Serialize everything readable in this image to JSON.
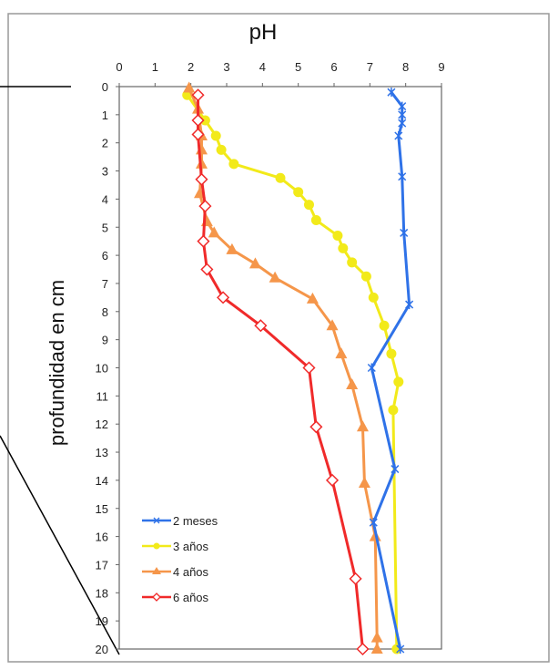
{
  "chart_data": {
    "type": "line",
    "title": "pH",
    "xlabel": "",
    "ylabel": "profundidad en cm",
    "xlim": [
      0,
      9
    ],
    "ylim": [
      0,
      20
    ],
    "y_inverted": true,
    "x_axis_position": "top",
    "grid": false,
    "legend_position": "bottom-left",
    "x_ticks": [
      "0",
      "1",
      "2",
      "3",
      "4",
      "5",
      "6",
      "7",
      "8",
      "9"
    ],
    "y_ticks": [
      "0",
      "1",
      "2",
      "3",
      "4",
      "5",
      "6",
      "7",
      "8",
      "9",
      "10",
      "11",
      "12",
      "13",
      "14",
      "15",
      "16",
      "17",
      "18",
      "19",
      "20"
    ],
    "series": [
      {
        "name": "2 meses",
        "color": "#2f72e8",
        "marker": "x",
        "points": [
          [
            7.6,
            0.2
          ],
          [
            7.9,
            0.7
          ],
          [
            7.9,
            1.0
          ],
          [
            7.9,
            1.3
          ],
          [
            7.8,
            1.75
          ],
          [
            7.9,
            3.2
          ],
          [
            7.95,
            5.2
          ],
          [
            8.1,
            7.75
          ],
          [
            7.05,
            10.0
          ],
          [
            7.7,
            13.6
          ],
          [
            7.1,
            15.5
          ],
          [
            7.85,
            20
          ]
        ]
      },
      {
        "name": "3 años",
        "color": "#f2ea1a",
        "marker": "circle",
        "points": [
          [
            1.9,
            0.3
          ],
          [
            2.4,
            1.2
          ],
          [
            2.7,
            1.75
          ],
          [
            2.85,
            2.25
          ],
          [
            3.2,
            2.75
          ],
          [
            4.5,
            3.25
          ],
          [
            5.0,
            3.75
          ],
          [
            5.3,
            4.2
          ],
          [
            5.5,
            4.75
          ],
          [
            6.1,
            5.3
          ],
          [
            6.25,
            5.75
          ],
          [
            6.5,
            6.25
          ],
          [
            6.9,
            6.75
          ],
          [
            7.1,
            7.5
          ],
          [
            7.4,
            8.5
          ],
          [
            7.6,
            9.5
          ],
          [
            7.8,
            10.5
          ],
          [
            7.65,
            11.5
          ],
          [
            7.75,
            20
          ]
        ]
      },
      {
        "name": "4 años",
        "color": "#f5964a",
        "marker": "triangle",
        "points": [
          [
            1.95,
            0.05
          ],
          [
            2.2,
            0.8
          ],
          [
            2.3,
            1.75
          ],
          [
            2.3,
            2.25
          ],
          [
            2.3,
            2.75
          ],
          [
            2.25,
            3.8
          ],
          [
            2.45,
            4.8
          ],
          [
            2.65,
            5.2
          ],
          [
            3.15,
            5.8
          ],
          [
            3.8,
            6.3
          ],
          [
            4.35,
            6.8
          ],
          [
            5.4,
            7.55
          ],
          [
            5.95,
            8.5
          ],
          [
            6.2,
            9.5
          ],
          [
            6.5,
            10.6
          ],
          [
            6.8,
            12.1
          ],
          [
            6.85,
            14.1
          ],
          [
            7.15,
            16.0
          ],
          [
            7.2,
            19.6
          ],
          [
            7.2,
            20
          ]
        ]
      },
      {
        "name": "6 años",
        "color": "#f02a2a",
        "marker": "diamond-open",
        "points": [
          [
            2.2,
            0.3
          ],
          [
            2.2,
            1.2
          ],
          [
            2.2,
            1.7
          ],
          [
            2.3,
            3.3
          ],
          [
            2.4,
            4.25
          ],
          [
            2.35,
            5.5
          ],
          [
            2.45,
            6.5
          ],
          [
            2.9,
            7.5
          ],
          [
            3.95,
            8.5
          ],
          [
            5.3,
            10.0
          ],
          [
            5.5,
            12.1
          ],
          [
            5.95,
            14.0
          ],
          [
            6.6,
            17.5
          ],
          [
            6.8,
            20
          ]
        ]
      }
    ]
  }
}
